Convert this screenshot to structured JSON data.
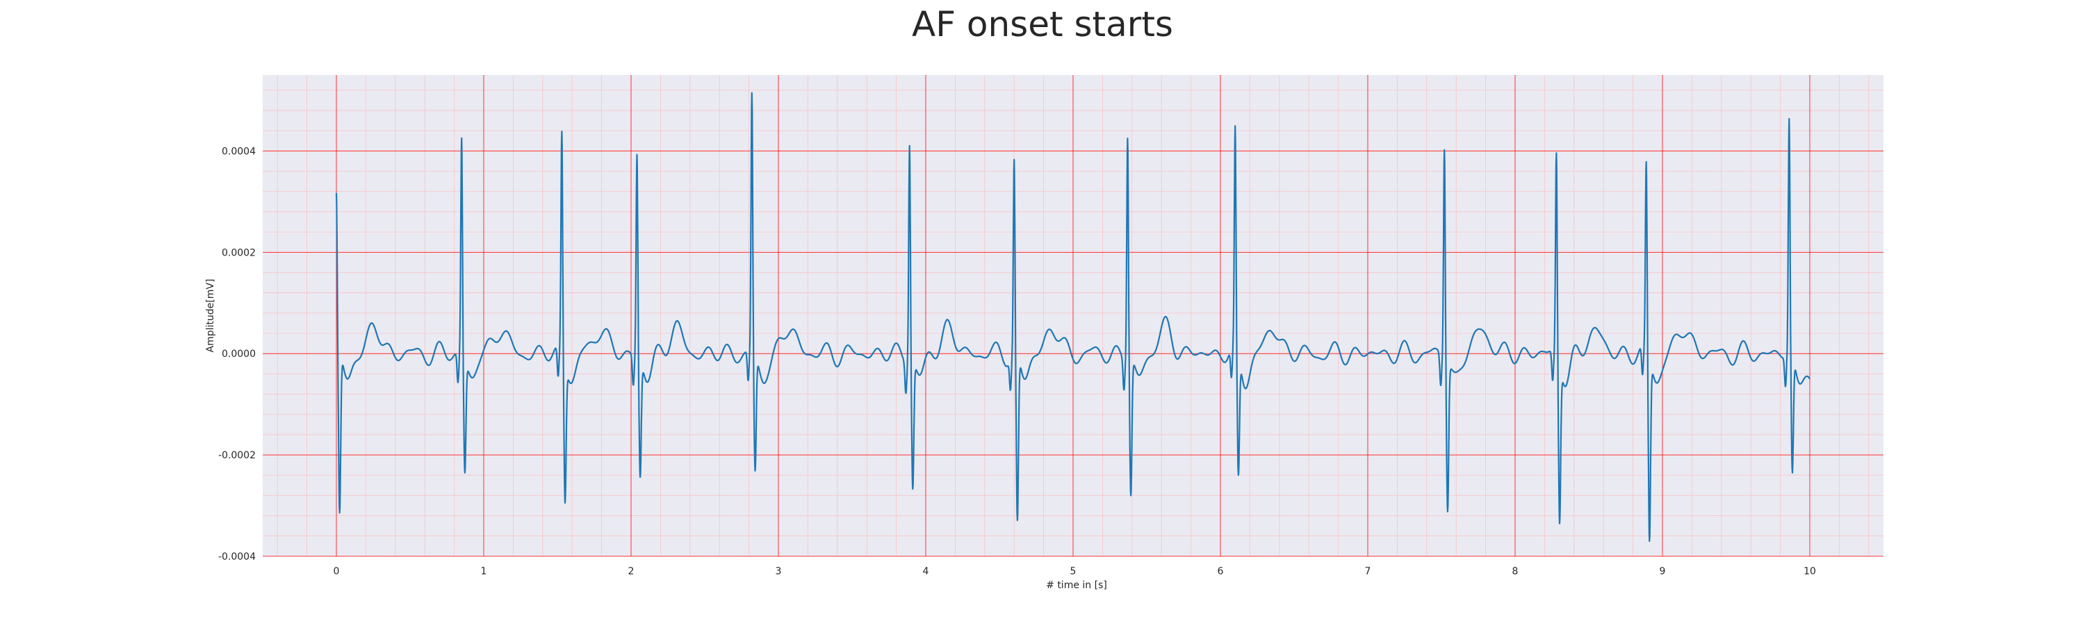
{
  "title": "AF onset starts",
  "colors": {
    "background": "#eaeaf2",
    "major_grid": "#ff0000",
    "minor_grid": "#ffb3b3",
    "line": "#1f77b4"
  },
  "chart_data": {
    "type": "line",
    "title": "AF onset starts",
    "xlabel": "# time in [s]",
    "ylabel": "Amplitude[mV]",
    "xlim": [
      -0.5,
      10.5
    ],
    "ylim": [
      -0.0004,
      0.00055
    ],
    "xticks": [
      0,
      1,
      2,
      3,
      4,
      5,
      6,
      7,
      8,
      9,
      10
    ],
    "xtick_labels": [
      "0",
      "1",
      "2",
      "3",
      "4",
      "5",
      "6",
      "7",
      "8",
      "9",
      "10"
    ],
    "yticks": [
      -0.0004,
      -0.0002,
      0.0,
      0.0002,
      0.0004
    ],
    "ytick_labels": [
      "-0.0004",
      "-0.0002",
      "0.0000",
      "0.0002",
      "0.0004"
    ],
    "minor_grid": true,
    "major_grid": true,
    "series": [
      {
        "r_peak_times": [
          0.0,
          0.85,
          1.53,
          2.04,
          2.82,
          3.89,
          4.6,
          5.37,
          6.1,
          7.52,
          8.28,
          8.89,
          9.86
        ],
        "r_peak_values": [
          0.00031,
          0.00043,
          0.00044,
          0.0004,
          0.00051,
          0.00043,
          0.00038,
          0.00044,
          0.00043,
          0.00042,
          0.0004,
          0.00037,
          0.00046
        ],
        "s_trough_values": [
          -0.00032,
          -0.00022,
          -0.00027,
          -0.00023,
          -0.00023,
          -0.00025,
          -0.00033,
          -0.00027,
          -0.00024,
          -0.00029,
          -0.00031,
          -0.00036,
          -0.00024
        ],
        "end_time": 10.0,
        "end_value": -5e-05
      }
    ]
  }
}
